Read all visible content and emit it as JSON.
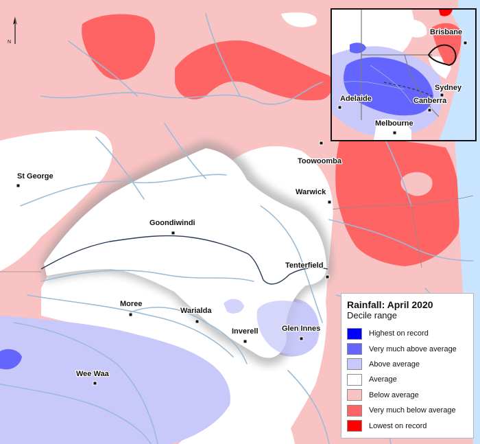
{
  "map": {
    "north_label": "N",
    "towns": [
      {
        "name": "St George"
      },
      {
        "name": "Toowoomba"
      },
      {
        "name": "Warwick"
      },
      {
        "name": "Goondiwindi"
      },
      {
        "name": "Tenterfield"
      },
      {
        "name": "Moree"
      },
      {
        "name": "Warialda"
      },
      {
        "name": "Inverell"
      },
      {
        "name": "Glen Innes"
      },
      {
        "name": "Wee Waa"
      }
    ]
  },
  "inset": {
    "cities": [
      {
        "name": "Brisbane"
      },
      {
        "name": "Sydney"
      },
      {
        "name": "Canberra"
      },
      {
        "name": "Adelaide"
      },
      {
        "name": "Melbourne"
      }
    ]
  },
  "legend": {
    "title": "Rainfall: April 2020",
    "subtitle": "Decile range",
    "items": [
      {
        "label": "Highest on record",
        "color": "#0000ff"
      },
      {
        "label": "Very much above average",
        "color": "#6464ff"
      },
      {
        "label": "Above average",
        "color": "#c8c8fa"
      },
      {
        "label": "Average",
        "color": "#ffffff"
      },
      {
        "label": "Below average",
        "color": "#fac3c3"
      },
      {
        "label": "Very much below average",
        "color": "#ff6464"
      },
      {
        "label": "Lowest on record",
        "color": "#ff0000"
      }
    ]
  },
  "colors": {
    "ocean": "#c8e4ff",
    "river": "#9bbbd6",
    "boundary": "#7a7a7a",
    "catchment_outline": "#2a3a5a"
  }
}
